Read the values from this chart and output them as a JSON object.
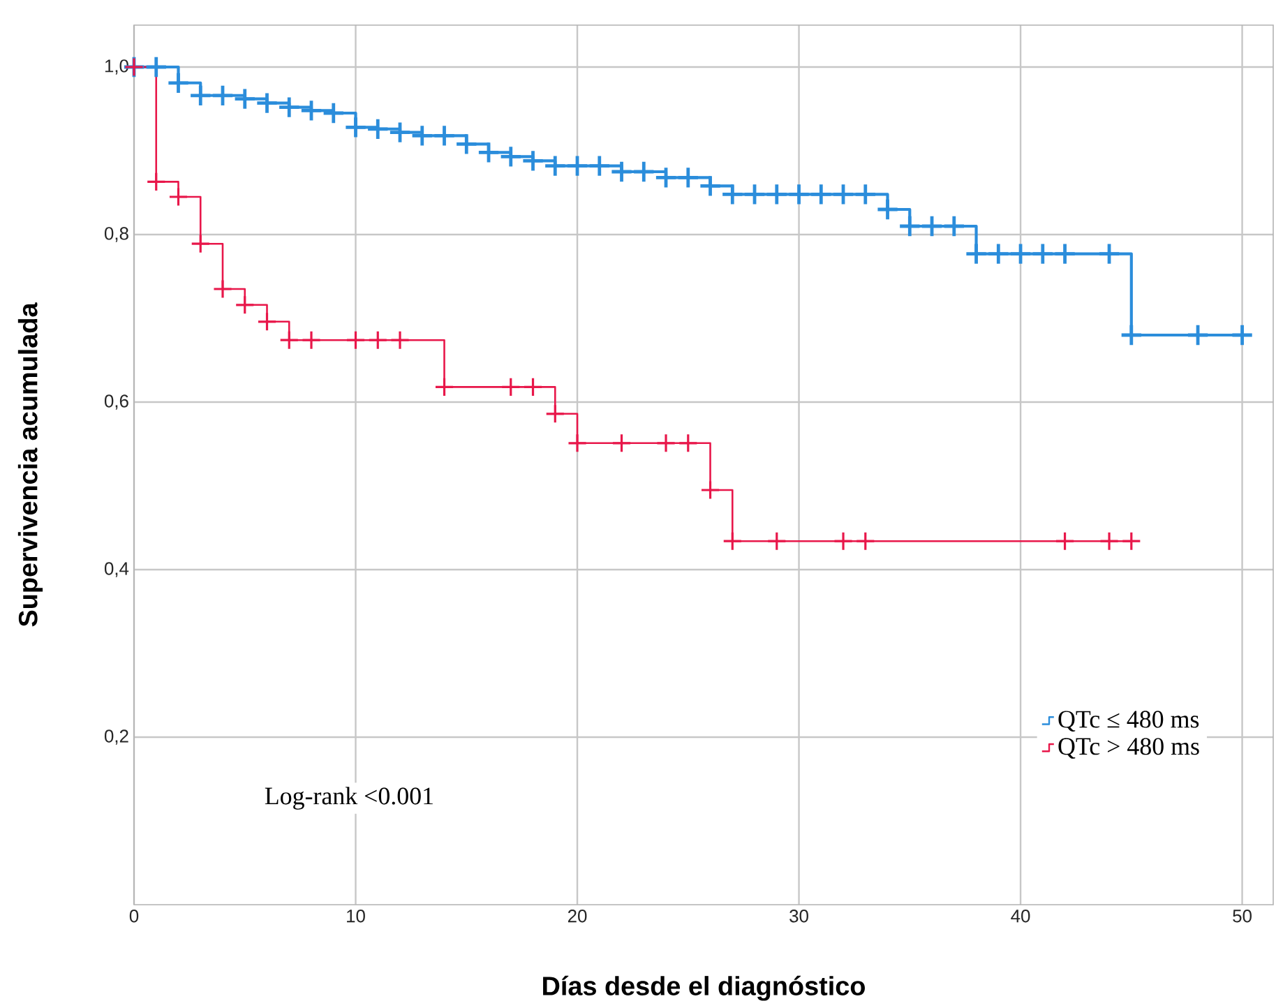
{
  "chart_data": {
    "type": "step",
    "xlabel": "Días desde el diagnóstico",
    "ylabel": "Supervivencia acumulada",
    "annotations": [
      "Log-rank <0.001"
    ],
    "series": [
      {
        "name": "QTc ≤ 480 ms",
        "color": "#2b8ddb",
        "x": [
          0,
          1,
          2,
          3,
          4,
          5,
          6,
          7,
          8,
          9,
          10,
          11,
          12,
          13,
          14,
          15,
          16,
          17,
          18,
          19,
          20,
          21,
          22,
          23,
          24,
          25,
          26,
          27,
          28,
          29,
          30,
          31,
          32,
          33,
          34,
          35,
          36,
          37,
          38,
          39,
          40,
          41,
          42,
          44,
          45,
          48,
          50
        ],
        "values": [
          1.0,
          1.0,
          0.981,
          0.966,
          0.966,
          0.962,
          0.957,
          0.952,
          0.948,
          0.945,
          0.928,
          0.926,
          0.922,
          0.918,
          0.918,
          0.908,
          0.898,
          0.893,
          0.888,
          0.882,
          0.882,
          0.882,
          0.875,
          0.875,
          0.868,
          0.868,
          0.858,
          0.848,
          0.848,
          0.848,
          0.848,
          0.848,
          0.848,
          0.848,
          0.83,
          0.81,
          0.81,
          0.81,
          0.777,
          0.777,
          0.777,
          0.777,
          0.777,
          0.777,
          0.68,
          0.68,
          0.68
        ]
      },
      {
        "name": "QTc > 480 ms",
        "color": "#e8174a",
        "x": [
          0,
          1,
          2,
          3,
          4,
          5,
          6,
          7,
          8,
          10,
          11,
          12,
          14,
          17,
          18,
          19,
          20,
          22,
          24,
          25,
          26,
          27,
          29,
          32,
          33,
          42,
          44,
          45
        ],
        "values": [
          1.0,
          0.863,
          0.845,
          0.789,
          0.735,
          0.716,
          0.696,
          0.674,
          0.674,
          0.674,
          0.674,
          0.674,
          0.618,
          0.618,
          0.618,
          0.586,
          0.551,
          0.551,
          0.551,
          0.551,
          0.495,
          0.434,
          0.434,
          0.434,
          0.434,
          0.434,
          0.434,
          0.434
        ]
      }
    ],
    "xlim": [
      0,
      51.4
    ],
    "ylim": [
      0,
      1.05
    ],
    "xticks": [
      0,
      10,
      20,
      30,
      40,
      50
    ],
    "yticks": [
      {
        "value": 0.2,
        "label": "0,2"
      },
      {
        "value": 0.4,
        "label": "0,4"
      },
      {
        "value": 0.6,
        "label": "0,6"
      },
      {
        "value": 0.8,
        "label": "0,8"
      },
      {
        "value": 1.0,
        "label": "1,0"
      }
    ],
    "grid": true,
    "legend": "bottom right",
    "marker": "cross",
    "line_style": "solid"
  }
}
